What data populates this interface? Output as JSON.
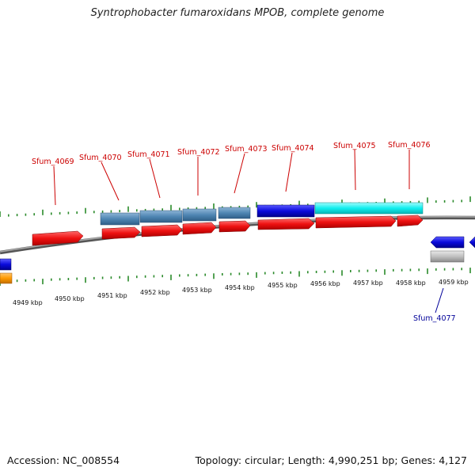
{
  "header": {
    "title": "Syntrophobacter fumaroxidans MPOB, complete genome"
  },
  "footer": {
    "accession": "Accession: NC_008554",
    "summary": "Topology: circular; Length: 4,990,251 bp; Genes: 4,127"
  },
  "colors": {
    "backbone": "#888888",
    "tick": "#2a8a2a",
    "gene_label_forward": "#cc0000",
    "gene_label_reverse": "#000099",
    "cds": "#ee1111",
    "protein_steel": "#4f86b3",
    "protein_blue": "#0a0adc",
    "protein_cyan": "#10eeee",
    "protein_grey": "#c0c0c0",
    "protein_orange": "#ff9900"
  },
  "scale": {
    "unit": "kbp",
    "labels": [
      "4949 kbp",
      "4950 kbp",
      "4951 kbp",
      "4952 kbp",
      "4953 kbp",
      "4954 kbp",
      "4955 kbp",
      "4956 kbp",
      "4957 kbp",
      "4958 kbp",
      "4959 kbp"
    ]
  },
  "genes": [
    {
      "label": "Sfum_4069",
      "strand": "+"
    },
    {
      "label": "Sfum_4070",
      "strand": "+"
    },
    {
      "label": "Sfum_4071",
      "strand": "+"
    },
    {
      "label": "Sfum_4072",
      "strand": "+"
    },
    {
      "label": "Sfum_4073",
      "strand": "+"
    },
    {
      "label": "Sfum_4074",
      "strand": "+"
    },
    {
      "label": "Sfum_4075",
      "strand": "+"
    },
    {
      "label": "Sfum_4076",
      "strand": "+"
    },
    {
      "label": "Sfum_4077",
      "strand": "-"
    }
  ]
}
